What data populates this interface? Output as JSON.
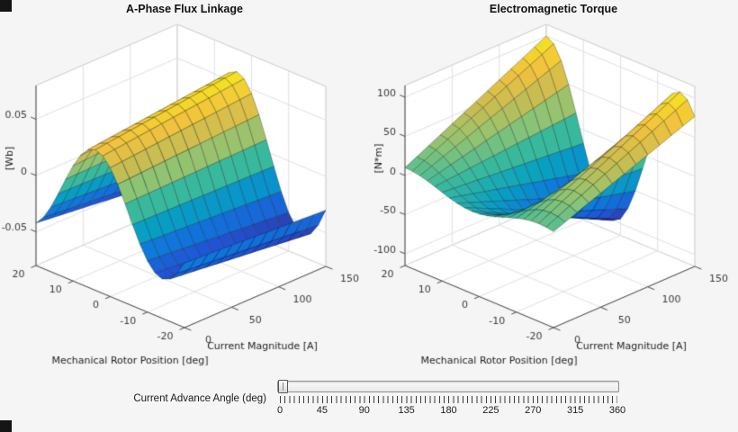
{
  "figure": {
    "background": "#f5f5f5"
  },
  "chart_data": [
    {
      "type": "surface",
      "title": "A-Phase Flux Linkage",
      "xlabel": "Current Magnitude [A]",
      "ylabel": "Mechanical Rotor Position [deg]",
      "zlabel": "[Wb]",
      "x_range": [
        0,
        150
      ],
      "y_range": [
        -20,
        20
      ],
      "z_lim": [
        -0.08,
        0.08
      ],
      "x_ticks": [
        0,
        50,
        100,
        150
      ],
      "y_ticks": [
        -20,
        -10,
        0,
        10,
        20
      ],
      "z_ticks": [
        -0.05,
        0,
        0.05
      ],
      "z_data_range": [
        -0.06,
        0.06
      ],
      "surface_model": {
        "description": "flux = (base_amp + current_amp*I/Imax) * cos(2*pi*(pos - phase_deg)/period_deg)",
        "wave": "cos",
        "base_amp": 0.045,
        "current_amp": 0.015,
        "period_deg": 36,
        "phase_deg": 4
      },
      "legend": "none",
      "grid": true
    },
    {
      "type": "surface",
      "title": "Electromagnetic Torque",
      "xlabel": "Current Magnitude [A]",
      "ylabel": "Mechanical Rotor Position [deg]",
      "zlabel": "[N*m]",
      "x_range": [
        0,
        150
      ],
      "y_range": [
        -20,
        20
      ],
      "z_lim": [
        -115,
        115
      ],
      "x_ticks": [
        0,
        50,
        100,
        150
      ],
      "y_ticks": [
        -20,
        -10,
        0,
        10,
        20
      ],
      "z_ticks": [
        -100,
        -50,
        0,
        50,
        100
      ],
      "z_data_range": [
        -100,
        100
      ],
      "surface_model": {
        "description": "torque = (base_amp + current_amp*I/Imax) * sin(2*pi*(pos - phase_deg)/period_deg)",
        "wave": "sin",
        "base_amp": 10,
        "current_amp": 90,
        "period_deg": 36,
        "phase_deg": 11
      },
      "legend": "none",
      "grid": true
    }
  ],
  "slider": {
    "label": "Current Advance Angle (deg)",
    "min": 0,
    "max": 360,
    "value": 0,
    "major_tick_labels": [
      "0",
      "45",
      "90",
      "135",
      "180",
      "225",
      "270",
      "315",
      "360"
    ]
  },
  "colors": {
    "parula": [
      "#352a87",
      "#2053d4",
      "#0f77db",
      "#07a0c3",
      "#38b99e",
      "#8ac476",
      "#c6bd53",
      "#f2c23e",
      "#f5e61f"
    ],
    "axes_background": "#ffffff",
    "wall_edge": "#c9c9c9",
    "grid_line": "#e0e0e0",
    "axis_line": "#4a4a4a",
    "tick_text": "#3a3a3a",
    "label_text": "#1c1c1c"
  }
}
